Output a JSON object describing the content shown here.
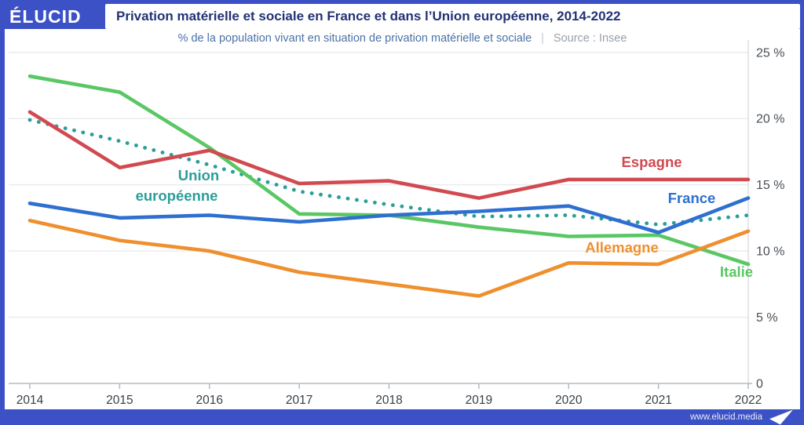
{
  "header": {
    "logo": "ÉLUCID",
    "title": "Privation matérielle et sociale en France et dans l’Union européenne, 2014-2022",
    "subtitle": "% de la population vivant en situation de privation matérielle et sociale",
    "separator": "|",
    "source": "Source : Insee"
  },
  "footer": {
    "url": "www.elucid.media"
  },
  "colors": {
    "frame_blue": "#3b51c5",
    "title_text": "#233274",
    "subtitle_text": "#4b72a6",
    "source_text": "#98a0ab",
    "gridline": "#ebecee",
    "axis": "#b6bac0",
    "tick_label": "#4a4f57",
    "espagne": "#d04a50",
    "union_europeenne": "#2a9e99",
    "france": "#2e6fd0",
    "allemagne": "#ef8f2e",
    "italie": "#5ac764"
  },
  "chart_data": {
    "type": "line",
    "title": "Privation matérielle et sociale en France et dans l’Union européenne, 2014-2022",
    "subtitle": "% de la population vivant en situation de privation matérielle et sociale",
    "source": "Insee",
    "x": [
      "2014",
      "2015",
      "2016",
      "2017",
      "2018",
      "2019",
      "2020",
      "2021",
      "2022"
    ],
    "ylim": [
      0,
      25
    ],
    "yticks": [
      0,
      5,
      10,
      15,
      20,
      25
    ],
    "ytick_labels": [
      "0",
      "5 %",
      "10 %",
      "15 %",
      "20 %",
      "25 %"
    ],
    "grid": true,
    "legend": "inline-labels",
    "series": [
      {
        "name": "Union européenne",
        "color": "#2a9e99",
        "style": "dotted",
        "values": [
          19.9,
          18.3,
          16.5,
          14.5,
          13.5,
          12.6,
          12.7,
          12.0,
          12.7
        ],
        "label_lines": [
          [
            "Union",
            247,
            193
          ],
          [
            "européenne",
            219,
            219
          ]
        ]
      },
      {
        "name": "Italie",
        "color": "#5ac764",
        "style": "solid",
        "values": [
          23.2,
          22.0,
          17.8,
          12.8,
          12.7,
          11.8,
          11.1,
          11.2,
          9.0
        ],
        "label_lines": [
          [
            "Italie",
            932,
            316
          ]
        ]
      },
      {
        "name": "Espagne",
        "color": "#d04a50",
        "style": "solid",
        "values": [
          20.5,
          16.3,
          17.6,
          15.1,
          15.3,
          14.0,
          15.4,
          15.4,
          15.4
        ],
        "label_lines": [
          [
            "Espagne",
            824,
            176
          ]
        ]
      },
      {
        "name": "Allemagne",
        "color": "#ef8f2e",
        "style": "solid",
        "values": [
          12.3,
          10.8,
          10.0,
          8.4,
          7.5,
          6.6,
          9.1,
          9.0,
          11.5
        ],
        "label_lines": [
          [
            "Allemagne",
            786,
            285
          ]
        ]
      },
      {
        "name": "France",
        "color": "#2e6fd0",
        "style": "solid",
        "values": [
          13.6,
          12.5,
          12.7,
          12.2,
          12.7,
          13.0,
          13.4,
          11.4,
          14.0
        ],
        "label_lines": [
          [
            "France",
            875,
            222
          ]
        ]
      }
    ]
  }
}
